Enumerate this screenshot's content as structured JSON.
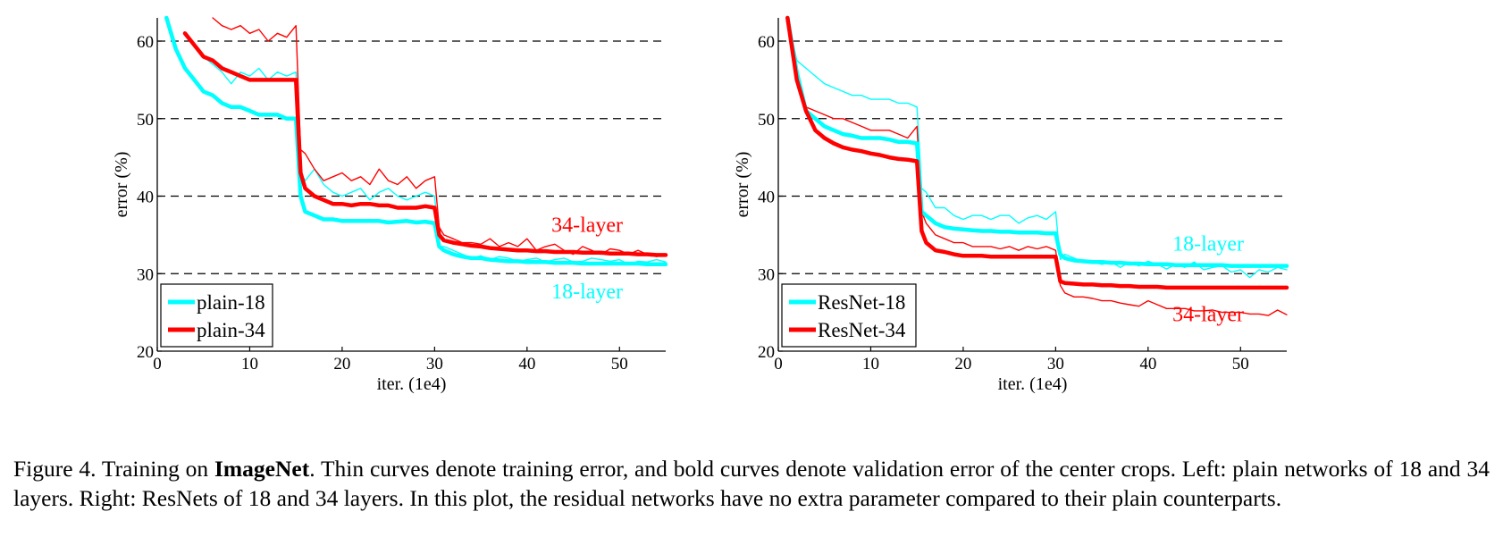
{
  "chart_data": [
    {
      "type": "line",
      "xlabel": "iter. (1e4)",
      "ylabel": "error (%)",
      "xlim": [
        0,
        55
      ],
      "ylim": [
        20,
        63
      ],
      "xticks": [
        0,
        10,
        20,
        30,
        40,
        50
      ],
      "yticks": [
        20,
        30,
        40,
        50,
        60
      ],
      "grid": "dashed horizontal at 30, 40, 50, 60",
      "legend": {
        "placement": "bottom-left",
        "entries": [
          "plain-18",
          "plain-34"
        ]
      },
      "annotations": [
        {
          "text": "34-layer",
          "x": 46.5,
          "y": 36.3,
          "color": "#ff0000"
        },
        {
          "text": "18-layer",
          "x": 46.5,
          "y": 27.7,
          "color": "#00ffff"
        }
      ],
      "colors": {
        "plain-18": "#00ffff",
        "plain-34": "#ff0000"
      },
      "series": [
        {
          "name": "plain-18",
          "role": "validation",
          "color": "#00ffff",
          "style": "bold",
          "x": [
            1,
            2,
            3,
            4,
            5,
            6,
            7,
            8,
            9,
            10,
            11,
            12,
            13,
            14,
            15,
            15.5,
            16,
            17,
            18,
            19,
            20,
            21,
            22,
            23,
            24,
            25,
            26,
            27,
            28,
            29,
            30,
            30.5,
            31,
            32,
            33,
            34,
            35,
            36,
            37,
            38,
            39,
            40,
            41,
            42,
            43,
            44,
            45,
            46,
            47,
            48,
            49,
            50,
            51,
            52,
            53,
            54,
            55
          ],
          "values": [
            63,
            59,
            56.5,
            55,
            53.5,
            53,
            52,
            51.5,
            51.5,
            51,
            50.5,
            50.5,
            50.5,
            50,
            50,
            40,
            38,
            37.5,
            37,
            37,
            36.8,
            36.8,
            36.8,
            36.8,
            36.8,
            36.6,
            36.7,
            36.8,
            36.6,
            36.7,
            36.5,
            33.5,
            33,
            32.5,
            32.2,
            32,
            32,
            31.8,
            31.7,
            31.6,
            31.6,
            31.5,
            31.5,
            31.5,
            31.4,
            31.4,
            31.4,
            31.3,
            31.3,
            31.3,
            31.3,
            31.3,
            31.3,
            31.3,
            31.2,
            31.2,
            31.2
          ]
        },
        {
          "name": "plain-34",
          "role": "validation",
          "color": "#ff0000",
          "style": "bold",
          "x": [
            3,
            4,
            5,
            6,
            7,
            8,
            9,
            10,
            11,
            12,
            13,
            14,
            15,
            15.5,
            16,
            17,
            18,
            19,
            20,
            21,
            22,
            23,
            24,
            25,
            26,
            27,
            28,
            29,
            30,
            30.5,
            31,
            32,
            33,
            34,
            35,
            36,
            37,
            38,
            39,
            40,
            41,
            42,
            43,
            44,
            45,
            46,
            47,
            48,
            49,
            50,
            51,
            52,
            53,
            54,
            55
          ],
          "values": [
            61,
            59.5,
            58,
            57.5,
            56.5,
            56,
            55.5,
            55,
            55,
            55,
            55,
            55,
            55,
            43,
            41,
            40,
            39.5,
            39,
            39,
            38.8,
            39,
            39,
            38.8,
            38.8,
            38.5,
            38.5,
            38.5,
            38.7,
            38.5,
            35,
            34.3,
            34,
            33.8,
            33.6,
            33.5,
            33.3,
            33.2,
            33.1,
            33,
            33,
            32.9,
            32.9,
            32.8,
            32.8,
            32.8,
            32.7,
            32.7,
            32.7,
            32.6,
            32.6,
            32.6,
            32.5,
            32.5,
            32.4,
            32.4
          ]
        },
        {
          "name": "plain-18",
          "role": "training",
          "color": "#00ffff",
          "style": "thin",
          "x": [
            5,
            6,
            7,
            8,
            9,
            10,
            11,
            12,
            13,
            14,
            15,
            15.5,
            16,
            17,
            18,
            19,
            20,
            21,
            22,
            23,
            24,
            25,
            26,
            27,
            28,
            29,
            30,
            30.5,
            31,
            32,
            33,
            34,
            35,
            36,
            37,
            38,
            39,
            40,
            41,
            42,
            43,
            44,
            45,
            46,
            47,
            48,
            49,
            50,
            51,
            52,
            53,
            54,
            55
          ],
          "values": [
            58,
            57,
            56,
            54.5,
            56,
            55.5,
            56.5,
            55,
            56,
            55.5,
            56,
            43,
            42,
            43.5,
            41.5,
            40.5,
            40,
            40.5,
            41,
            39.5,
            40.5,
            41,
            40,
            39.5,
            40,
            40.5,
            40,
            33.5,
            33.5,
            33,
            32.5,
            32,
            32.3,
            31.8,
            32.2,
            32,
            31.6,
            31.8,
            32,
            31.5,
            31.8,
            32,
            31.5,
            31.6,
            32,
            31.8,
            31.6,
            31.8,
            31.2,
            31.6,
            31.5,
            31.8,
            31.5
          ]
        },
        {
          "name": "plain-34",
          "role": "training",
          "color": "#ff0000",
          "style": "thin",
          "x": [
            6,
            7,
            8,
            9,
            10,
            11,
            12,
            13,
            14,
            15,
            15.5,
            16,
            17,
            18,
            19,
            20,
            21,
            22,
            23,
            24,
            25,
            26,
            27,
            28,
            29,
            30,
            30.5,
            31,
            32,
            33,
            34,
            35,
            36,
            37,
            38,
            39,
            40,
            41,
            42,
            43,
            44,
            45,
            46,
            47,
            48,
            49,
            50,
            51,
            52,
            53,
            54,
            55
          ],
          "values": [
            63,
            62,
            61.5,
            62,
            61,
            61.5,
            60,
            61,
            60.5,
            62,
            46,
            45.5,
            43.5,
            42,
            42.5,
            43,
            42,
            42.5,
            41.5,
            43.5,
            42,
            41.5,
            42.5,
            41,
            42,
            42.5,
            36,
            35,
            34.5,
            34,
            34,
            33.8,
            34.5,
            33.5,
            34,
            33.5,
            34.5,
            33,
            33.5,
            33.8,
            33,
            32.5,
            33.5,
            33,
            32.5,
            33.2,
            33,
            32.5,
            33,
            32.5,
            32.2,
            32.5
          ]
        }
      ]
    },
    {
      "type": "line",
      "xlabel": "iter. (1e4)",
      "ylabel": "error (%)",
      "xlim": [
        0,
        55
      ],
      "ylim": [
        20,
        63
      ],
      "xticks": [
        0,
        10,
        20,
        30,
        40,
        50
      ],
      "yticks": [
        20,
        30,
        40,
        50,
        60
      ],
      "grid": "dashed horizontal at 30, 40, 50, 60",
      "legend": {
        "placement": "bottom-left",
        "entries": [
          "ResNet-18",
          "ResNet-34"
        ]
      },
      "annotations": [
        {
          "text": "18-layer",
          "x": 46.5,
          "y": 33.9,
          "color": "#00ffff"
        },
        {
          "text": "34-layer",
          "x": 46.5,
          "y": 24.8,
          "color": "#ff0000"
        }
      ],
      "colors": {
        "ResNet-18": "#00ffff",
        "ResNet-34": "#ff0000"
      },
      "series": [
        {
          "name": "ResNet-18",
          "role": "training",
          "color": "#00ffff",
          "style": "thin",
          "x": [
            1,
            2,
            3,
            4,
            5,
            6,
            7,
            8,
            9,
            10,
            11,
            12,
            13,
            14,
            15,
            15.5,
            16,
            17,
            18,
            19,
            20,
            21,
            22,
            23,
            24,
            25,
            26,
            27,
            28,
            29,
            30,
            30.5,
            31,
            32,
            33,
            34,
            35,
            36,
            37,
            38,
            39,
            40,
            41,
            42,
            43,
            44,
            45,
            46,
            47,
            48,
            49,
            50,
            51,
            52,
            53,
            54,
            55
          ],
          "values": [
            63,
            57.5,
            56.5,
            55.5,
            54.5,
            54,
            53.5,
            53,
            53,
            52.5,
            52.5,
            52.5,
            52,
            52,
            51.5,
            41,
            40.5,
            38.5,
            38.5,
            37.5,
            37,
            37.5,
            37.5,
            37,
            37.5,
            37.5,
            36.5,
            37.2,
            37.5,
            37,
            38,
            31.8,
            32.5,
            32,
            31.5,
            31.5,
            31.2,
            31.5,
            30.8,
            31.5,
            31,
            31.6,
            31.2,
            30.6,
            31.2,
            30.8,
            31.5,
            30.5,
            30.8,
            31,
            30.2,
            30.5,
            29.5,
            30.5,
            30.2,
            30.8,
            30.5
          ]
        },
        {
          "name": "ResNet-34",
          "role": "training",
          "color": "#ff0000",
          "style": "thin",
          "x": [
            1,
            2,
            3,
            4,
            5,
            6,
            7,
            8,
            9,
            10,
            11,
            12,
            13,
            14,
            15,
            15.5,
            16,
            17,
            18,
            19,
            20,
            21,
            22,
            23,
            24,
            25,
            26,
            27,
            28,
            29,
            30,
            30.5,
            31,
            32,
            33,
            34,
            35,
            36,
            37,
            38,
            39,
            40,
            41,
            42,
            43,
            44,
            45,
            46,
            47,
            48,
            49,
            50,
            51,
            52,
            53,
            54,
            55
          ],
          "values": [
            63,
            55,
            51.5,
            51,
            50.5,
            50,
            50,
            49.5,
            49,
            48.5,
            48.5,
            48.5,
            48,
            47.5,
            49,
            38,
            36.5,
            35,
            34.5,
            34,
            34,
            33.5,
            33.5,
            33.5,
            33.2,
            33.5,
            33,
            33.5,
            33.2,
            33.5,
            33,
            28.5,
            27.5,
            27,
            27,
            26.8,
            26.5,
            26.5,
            26.2,
            26,
            25.8,
            26.5,
            26,
            25.5,
            25.5,
            25.5,
            25.2,
            25.2,
            25.3,
            25,
            25,
            25,
            24.8,
            24.8,
            24.6,
            25.3,
            24.7
          ]
        },
        {
          "name": "ResNet-18",
          "role": "validation",
          "color": "#00ffff",
          "style": "bold",
          "x": [
            1,
            2,
            3,
            4,
            5,
            6,
            7,
            8,
            9,
            10,
            11,
            12,
            13,
            14,
            15,
            15.5,
            16,
            17,
            18,
            19,
            20,
            21,
            22,
            23,
            24,
            25,
            26,
            27,
            28,
            29,
            30,
            30.5,
            31,
            32,
            33,
            34,
            35,
            36,
            37,
            38,
            39,
            40,
            41,
            42,
            43,
            44,
            45,
            46,
            47,
            48,
            49,
            50,
            51,
            52,
            53,
            54,
            55
          ],
          "values": [
            63,
            56,
            51,
            50,
            49,
            48.5,
            48,
            47.8,
            47.5,
            47.5,
            47.5,
            47.3,
            47,
            47,
            46.8,
            38,
            37.5,
            36.5,
            36,
            35.8,
            35.7,
            35.6,
            35.5,
            35.5,
            35.4,
            35.4,
            35.3,
            35.3,
            35.3,
            35.2,
            35.2,
            32.5,
            32,
            31.7,
            31.6,
            31.5,
            31.5,
            31.4,
            31.4,
            31.3,
            31.3,
            31.2,
            31.2,
            31.2,
            31.1,
            31.1,
            31.1,
            31.1,
            31.1,
            31.1,
            31,
            31,
            31,
            31,
            31,
            31,
            31
          ]
        },
        {
          "name": "ResNet-34",
          "role": "validation",
          "color": "#ff0000",
          "style": "bold",
          "x": [
            1,
            2,
            3,
            4,
            5,
            6,
            7,
            8,
            9,
            10,
            11,
            12,
            13,
            14,
            15,
            15.5,
            16,
            17,
            18,
            19,
            20,
            21,
            22,
            23,
            24,
            25,
            26,
            27,
            28,
            29,
            30,
            30.5,
            31,
            32,
            33,
            34,
            35,
            36,
            37,
            38,
            39,
            40,
            41,
            42,
            43,
            44,
            45,
            46,
            47,
            48,
            49,
            50,
            51,
            52,
            53,
            54,
            55
          ],
          "values": [
            63,
            55,
            51,
            48.5,
            47.5,
            46.8,
            46.3,
            46,
            45.8,
            45.5,
            45.3,
            45,
            44.8,
            44.7,
            44.5,
            35.5,
            34,
            33,
            32.8,
            32.5,
            32.3,
            32.3,
            32.3,
            32.2,
            32.2,
            32.2,
            32.2,
            32.2,
            32.2,
            32.2,
            32.2,
            29,
            28.8,
            28.7,
            28.6,
            28.6,
            28.5,
            28.5,
            28.4,
            28.4,
            28.3,
            28.3,
            28.3,
            28.2,
            28.2,
            28.2,
            28.2,
            28.2,
            28.2,
            28.2,
            28.2,
            28.2,
            28.2,
            28.2,
            28.2,
            28.2,
            28.2
          ]
        }
      ]
    }
  ],
  "caption": {
    "prefix": "Figure 4. Training on ",
    "bold": "ImageNet",
    "rest": ". Thin curves denote training error, and bold curves denote validation error of the center crops. Left: plain networks of 18 and 34 layers. Right: ResNets of 18 and 34 layers. In this plot, the residual networks have no extra parameter compared to their plain counterparts."
  }
}
